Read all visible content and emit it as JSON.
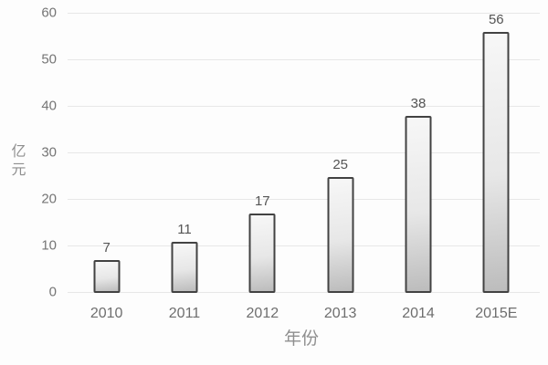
{
  "chart_data": {
    "type": "bar",
    "title": "",
    "categories": [
      "2010",
      "2011",
      "2012",
      "2013",
      "2014",
      "2015E"
    ],
    "values": [
      7,
      11,
      17,
      25,
      38,
      56
    ],
    "xlabel": "年份",
    "ylabel": "亿元",
    "ylim": [
      0,
      60
    ],
    "yticks": [
      0,
      10,
      20,
      30,
      40,
      50,
      60
    ],
    "grid": true,
    "legend": false,
    "colors": {
      "background": "#fdfdfd",
      "gridline": "#e7e7e7",
      "bar_border": "#424242",
      "bar_fill_top": "#f7f7f7",
      "bar_fill_bottom": "#bcbcbc",
      "value_label_text": "#545454",
      "tick_text": "#757575",
      "axis_title_text": "#8f8f8f"
    }
  }
}
